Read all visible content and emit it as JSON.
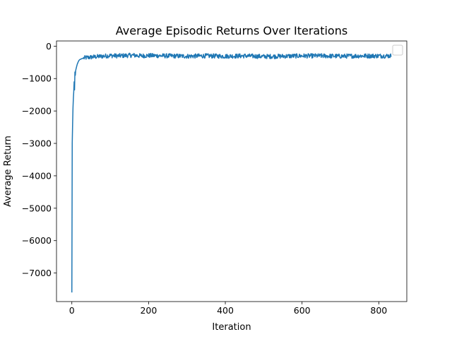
{
  "chart_data": {
    "type": "line",
    "title": "Average Episodic Returns Over Iterations",
    "xlabel": "Iteration",
    "ylabel": "Average Return",
    "xlim": [
      -40,
      873
    ],
    "ylim": [
      -7880,
      160
    ],
    "xticks": [
      0,
      200,
      400,
      600,
      800
    ],
    "xtick_labels": [
      "0",
      "200",
      "400",
      "600",
      "800"
    ],
    "yticks": [
      0,
      -1000,
      -2000,
      -3000,
      -4000,
      -5000,
      -6000,
      -7000
    ],
    "ytick_labels": [
      "0",
      "−1000",
      "−2000",
      "−3000",
      "−4000",
      "−5000",
      "−6000",
      "−7000"
    ],
    "grid": false,
    "legend": {
      "placement": "upper right",
      "entries": []
    },
    "series": [
      {
        "color": "#1f77b4",
        "x": [
          0,
          1,
          2,
          3,
          4,
          5,
          6,
          7,
          8,
          9,
          10,
          12,
          14,
          16,
          18,
          20,
          25,
          30,
          40,
          50,
          60,
          70,
          80,
          90,
          100,
          120,
          140,
          160,
          180,
          200,
          250,
          300,
          350,
          400,
          450,
          500,
          550,
          600,
          650,
          700,
          750,
          800,
          832
        ],
        "y": [
          -7600,
          -3000,
          -2400,
          -1900,
          -1600,
          -1400,
          -1100,
          -1350,
          -800,
          -900,
          -750,
          -650,
          -560,
          -500,
          -450,
          -420,
          -390,
          -370,
          -350,
          -340,
          -330,
          -320,
          -310,
          -300,
          -290,
          -300,
          -290,
          -280,
          -300,
          -290,
          -300,
          -310,
          -300,
          -310,
          -300,
          -320,
          -310,
          -300,
          -300,
          -310,
          -300,
          -300,
          -300
        ],
        "noise_amplitude": 70
      }
    ]
  }
}
